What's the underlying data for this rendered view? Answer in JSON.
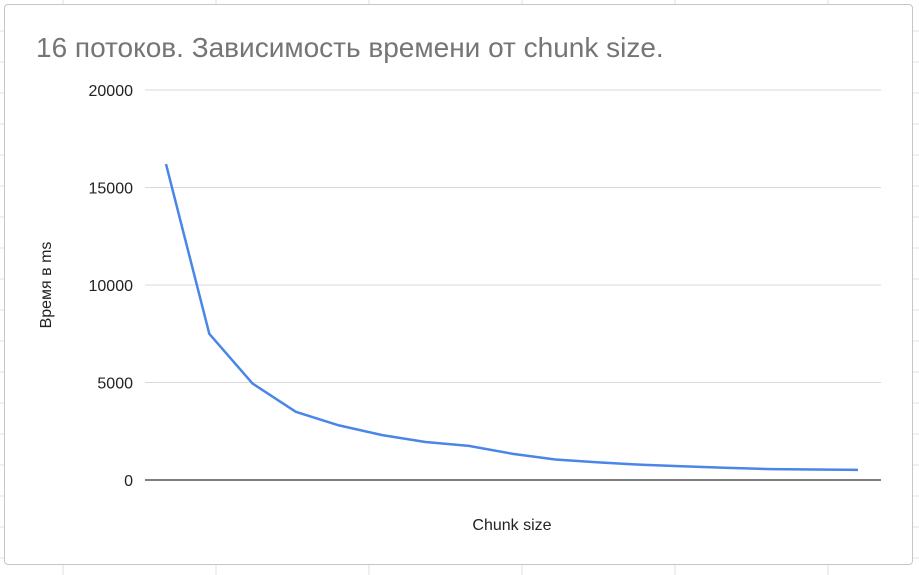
{
  "chart_data": {
    "type": "line",
    "title": "16 потоков. Зависимость времени от chunk size.",
    "xlabel": "Chunk size",
    "ylabel": "Время в ms",
    "ylim": [
      0,
      20000
    ],
    "yticks": [
      "20000",
      "15000",
      "10000",
      "5000",
      "0"
    ],
    "grid": true,
    "legend": "none",
    "series": [
      {
        "color": "#4a86e8",
        "values": [
          16200,
          7500,
          4950,
          3500,
          2800,
          2300,
          1950,
          1750,
          1350,
          1050,
          900,
          780,
          700,
          620,
          560,
          540,
          520
        ]
      }
    ]
  },
  "colors": {
    "line": "#4a86e8",
    "grid": "#d9d9d9",
    "baseline": "#333333",
    "title": "#757575"
  }
}
